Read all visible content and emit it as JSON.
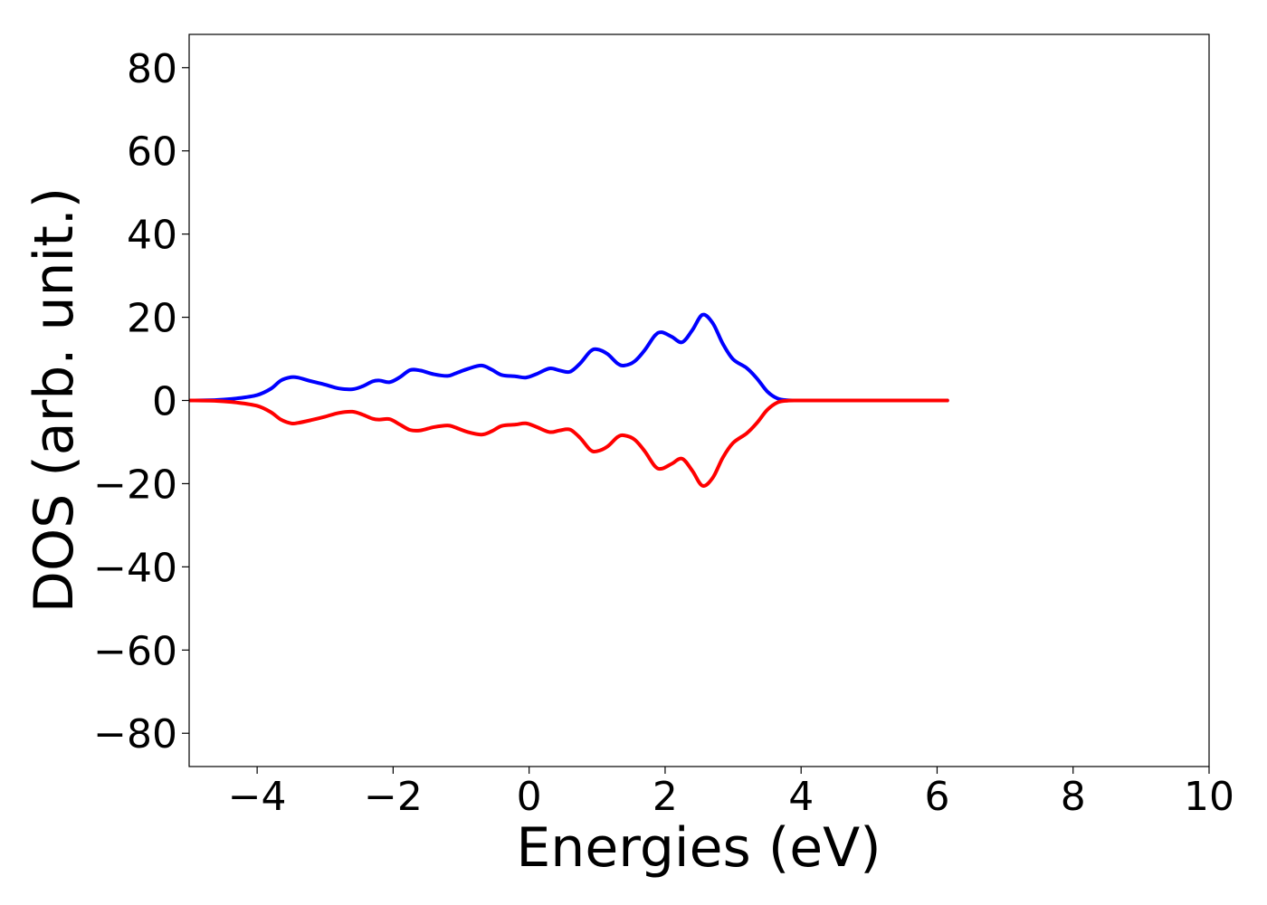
{
  "chart_data": {
    "type": "line",
    "xlabel": "Energies (eV)",
    "ylabel": "DOS (arb. unit.)",
    "xlim": [
      -5,
      10
    ],
    "ylim": [
      -88,
      88
    ],
    "x_ticks": [
      -4,
      -2,
      0,
      2,
      4,
      6,
      8,
      10
    ],
    "y_ticks": [
      -80,
      -60,
      -40,
      -20,
      0,
      20,
      40,
      60,
      80
    ],
    "x_tick_labels": [
      "−4",
      "−2",
      "0",
      "2",
      "4",
      "6",
      "8",
      "10"
    ],
    "y_tick_labels": [
      "−80",
      "−60",
      "−40",
      "−20",
      "0",
      "20",
      "40",
      "60",
      "80"
    ],
    "grid": false,
    "legend": "none",
    "series": [
      {
        "color": "#0000ff",
        "x": [
          -5.0,
          -4.6,
          -4.3,
          -4.0,
          -3.8,
          -3.65,
          -3.5,
          -3.4,
          -3.2,
          -3.0,
          -2.8,
          -2.6,
          -2.45,
          -2.3,
          -2.2,
          -2.05,
          -1.9,
          -1.75,
          -1.6,
          -1.4,
          -1.2,
          -1.1,
          -0.9,
          -0.7,
          -0.55,
          -0.4,
          -0.2,
          -0.05,
          0.1,
          0.3,
          0.45,
          0.6,
          0.75,
          0.9,
          1.0,
          1.15,
          1.3,
          1.4,
          1.55,
          1.7,
          1.85,
          1.95,
          2.1,
          2.25,
          2.4,
          2.55,
          2.7,
          2.85,
          3.0,
          3.2,
          3.35,
          3.5,
          3.65,
          3.8,
          4.0,
          4.5,
          5.0,
          5.5,
          6.15
        ],
        "values": [
          0.0,
          0.1,
          0.5,
          1.3,
          2.8,
          4.8,
          5.6,
          5.5,
          4.6,
          3.8,
          2.9,
          2.7,
          3.4,
          4.6,
          4.8,
          4.4,
          5.6,
          7.3,
          7.2,
          6.3,
          5.9,
          6.4,
          7.6,
          8.4,
          7.4,
          6.1,
          5.8,
          5.5,
          6.3,
          7.7,
          7.2,
          6.9,
          8.9,
          11.8,
          12.3,
          11.2,
          8.9,
          8.4,
          9.4,
          12.1,
          15.6,
          16.4,
          15.3,
          14.0,
          16.9,
          20.6,
          18.6,
          13.6,
          9.9,
          7.8,
          5.3,
          2.2,
          0.5,
          0.05,
          0.0,
          0.0,
          0.0,
          0.0,
          0.0
        ]
      },
      {
        "color": "#ff0000",
        "x": [
          -5.0,
          -4.6,
          -4.3,
          -4.0,
          -3.8,
          -3.65,
          -3.5,
          -3.4,
          -3.2,
          -3.0,
          -2.8,
          -2.6,
          -2.45,
          -2.3,
          -2.2,
          -2.05,
          -1.9,
          -1.75,
          -1.6,
          -1.4,
          -1.2,
          -1.1,
          -0.9,
          -0.7,
          -0.55,
          -0.4,
          -0.2,
          -0.05,
          0.1,
          0.3,
          0.45,
          0.6,
          0.75,
          0.9,
          1.0,
          1.15,
          1.3,
          1.4,
          1.55,
          1.7,
          1.85,
          1.95,
          2.1,
          2.25,
          2.4,
          2.55,
          2.7,
          2.85,
          3.0,
          3.2,
          3.35,
          3.5,
          3.65,
          3.8,
          4.0,
          4.5,
          5.0,
          5.5,
          6.15
        ],
        "values": [
          0.0,
          -0.1,
          -0.5,
          -1.3,
          -2.8,
          -4.6,
          -5.5,
          -5.4,
          -4.7,
          -3.9,
          -3.0,
          -2.7,
          -3.4,
          -4.4,
          -4.6,
          -4.5,
          -5.8,
          -7.1,
          -7.2,
          -6.4,
          -6.0,
          -6.4,
          -7.6,
          -8.2,
          -7.4,
          -6.1,
          -5.8,
          -5.5,
          -6.3,
          -7.6,
          -7.2,
          -7.0,
          -9.0,
          -11.9,
          -12.2,
          -11.1,
          -8.8,
          -8.4,
          -9.4,
          -12.2,
          -15.8,
          -16.4,
          -15.2,
          -14.0,
          -16.9,
          -20.5,
          -18.6,
          -13.7,
          -10.2,
          -7.9,
          -5.4,
          -2.3,
          -0.5,
          -0.05,
          0.0,
          0.0,
          0.0,
          0.0,
          0.0
        ]
      }
    ]
  }
}
